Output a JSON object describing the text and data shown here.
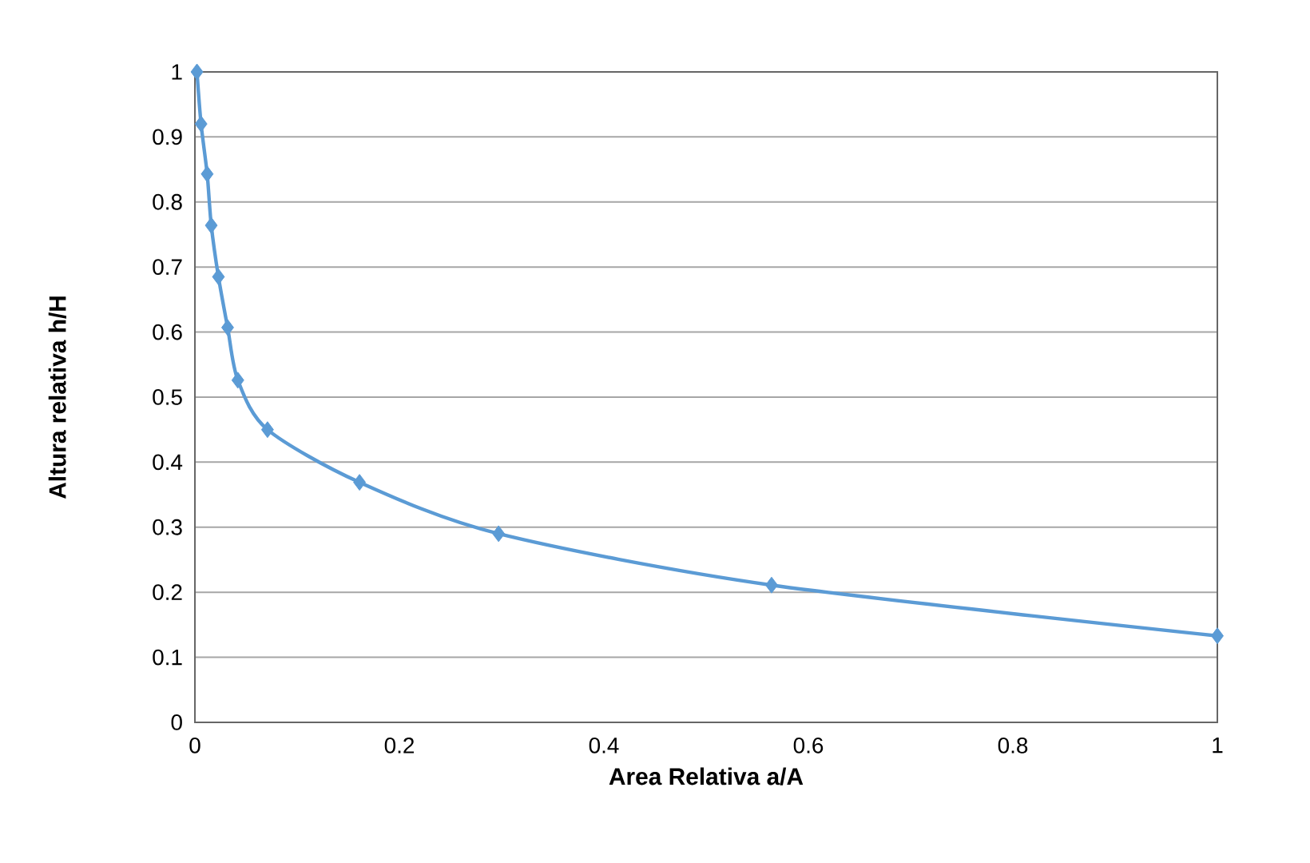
{
  "chart_data": {
    "type": "line",
    "xlabel": "Area  Relativa a/A",
    "ylabel": "Altura relativa h/H",
    "series": [
      {
        "color": "#5b9bd5",
        "x": [
          0.002,
          0.006,
          0.012,
          0.016,
          0.023,
          0.032,
          0.042,
          0.071,
          0.161,
          0.297,
          0.564,
          1
        ],
        "values": [
          1,
          0.92,
          0.843,
          0.764,
          0.685,
          0.607,
          0.526,
          0.45,
          0.369,
          0.29,
          0.211,
          0.133
        ]
      }
    ],
    "xlim": [
      0,
      1
    ],
    "ylim": [
      0,
      1
    ],
    "xticks": [
      0,
      0.2,
      0.4,
      0.6,
      0.8,
      1
    ],
    "yticks": [
      0,
      0.1,
      0.2,
      0.3,
      0.4,
      0.5,
      0.6,
      0.7,
      0.8,
      0.9,
      1
    ],
    "grid": "y",
    "marker": "diamond",
    "line_style": "solid"
  }
}
